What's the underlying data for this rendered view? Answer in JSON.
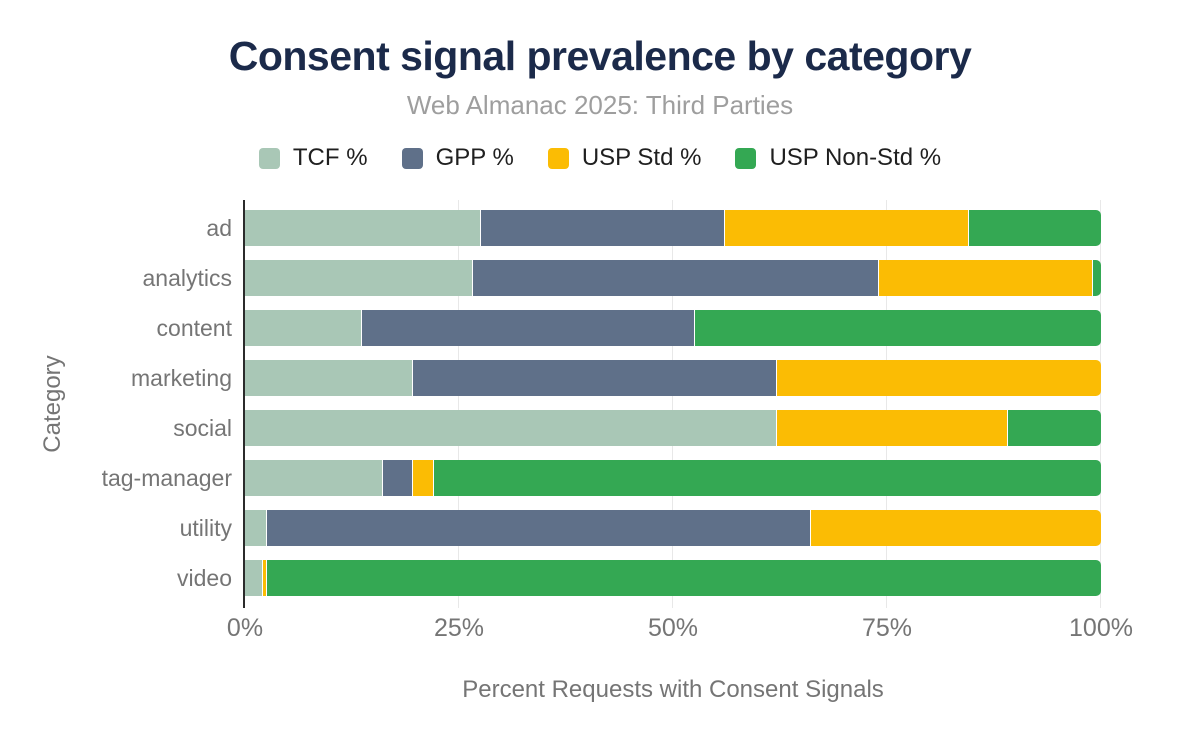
{
  "chart_data": {
    "type": "bar",
    "variant": "horizontal-stacked",
    "title": "Consent signal prevalence by category",
    "subtitle": "Web Almanac 2025: Third Parties",
    "xlabel": "Percent Requests with Consent Signals",
    "ylabel": "Category",
    "categories": [
      "ad",
      "analytics",
      "content",
      "marketing",
      "social",
      "tag-manager",
      "utility",
      "video"
    ],
    "series": [
      {
        "name": "TCF %",
        "color": "#a9c7b6",
        "values": [
          27.5,
          26.5,
          13.5,
          19.5,
          62.0,
          16.0,
          2.5,
          2.0
        ]
      },
      {
        "name": "GPP %",
        "color": "#5f7089",
        "values": [
          28.5,
          47.5,
          39.0,
          42.5,
          0.0,
          3.5,
          63.5,
          0.0
        ]
      },
      {
        "name": "USP Std %",
        "color": "#fbbc04",
        "values": [
          28.5,
          25.0,
          0.0,
          38.0,
          27.0,
          2.5,
          34.0,
          0.5
        ]
      },
      {
        "name": "USP Non-Std %",
        "color": "#34a853",
        "values": [
          15.5,
          1.0,
          47.5,
          0.0,
          11.0,
          78.0,
          0.0,
          97.5
        ]
      }
    ],
    "xlim": [
      0,
      100
    ],
    "x_ticks": [
      "0%",
      "25%",
      "50%",
      "75%",
      "100%"
    ],
    "grid": true,
    "legend_position": "top"
  },
  "colors": {
    "title": "#1b2a4a",
    "subtitle": "#9e9e9e",
    "axis_text": "#757575",
    "legend_text": "#1f1f1f",
    "gridline": "#e8e8e8",
    "axis_line": "#2b2b2b",
    "background": "#ffffff"
  }
}
